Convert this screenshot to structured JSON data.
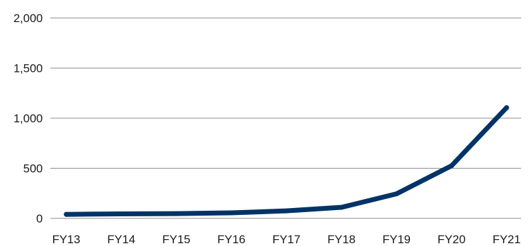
{
  "chart_data": {
    "type": "line",
    "title": "",
    "xlabel": "",
    "ylabel": "",
    "categories": [
      "FY13",
      "FY14",
      "FY15",
      "FY16",
      "FY17",
      "FY18",
      "FY19",
      "FY20",
      "FY21"
    ],
    "series": [
      {
        "values": [
          40,
          45,
          47,
          55,
          75,
          110,
          245,
          525,
          1105
        ],
        "color": "#003366"
      }
    ],
    "ylim": [
      0,
      2000
    ],
    "yticks": [
      0,
      500,
      1000,
      1500,
      2000
    ],
    "ytick_labels": [
      "0",
      "500",
      "1,000",
      "1,500",
      "2,000"
    ],
    "grid": true,
    "legend": "none"
  }
}
